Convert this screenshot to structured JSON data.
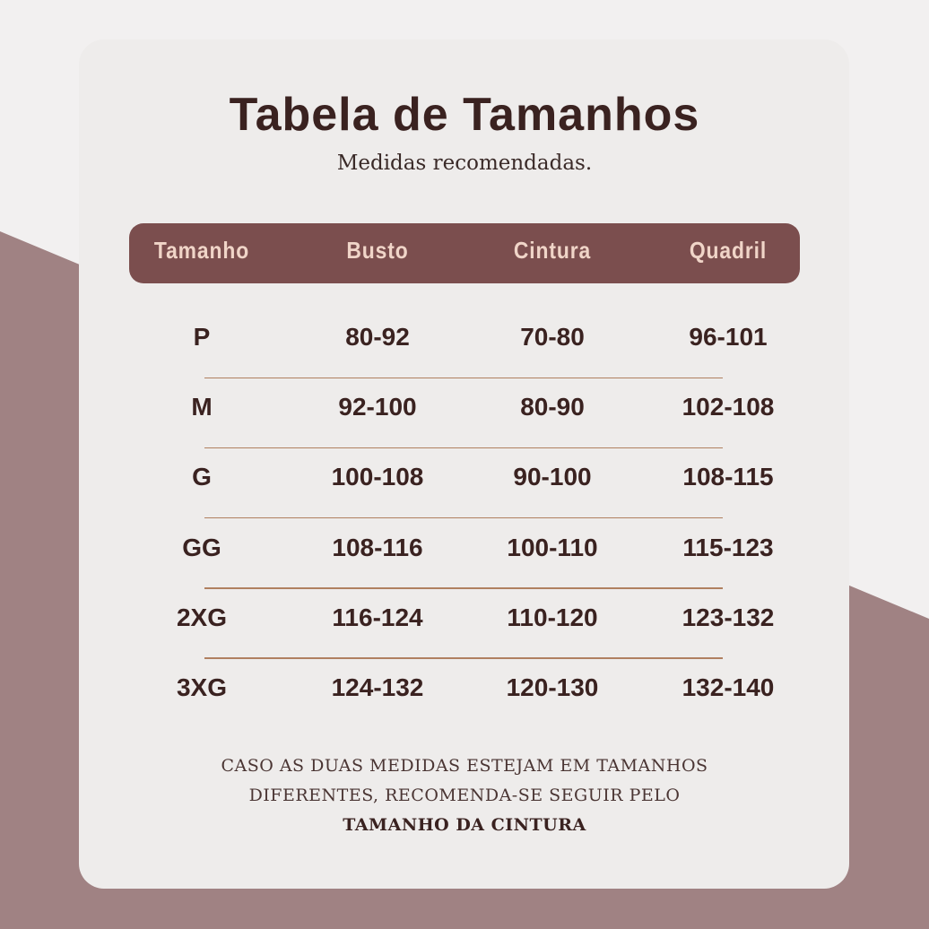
{
  "title": "Tabela de Tamanhos",
  "subtitle": "Medidas recomendadas.",
  "colors": {
    "background": "#f2f0f0",
    "accent_band": "#a08283",
    "card": "#eeeceb",
    "header": "#7b4e4e",
    "header_text": "#f0d5c8",
    "text": "#3a2220",
    "divider": "#b08060"
  },
  "table": {
    "headers": [
      "Tamanho",
      "Busto",
      "Cintura",
      "Quadril"
    ],
    "rows": [
      [
        "P",
        "80-92",
        "70-80",
        "96-101"
      ],
      [
        "M",
        "92-100",
        "80-90",
        "102-108"
      ],
      [
        "G",
        "100-108",
        "90-100",
        "108-115"
      ],
      [
        "GG",
        "108-116",
        "100-110",
        "115-123"
      ],
      [
        "2XG",
        "116-124",
        "110-120",
        "123-132"
      ],
      [
        "3XG",
        "124-132",
        "120-130",
        "132-140"
      ]
    ]
  },
  "note": {
    "line1": "CASO AS DUAS MEDIDAS ESTEJAM EM TAMANHOS",
    "line2": "DIFERENTES, RECOMENDA-SE SEGUIR PELO",
    "line3": "TAMANHO DA CINTURA"
  }
}
